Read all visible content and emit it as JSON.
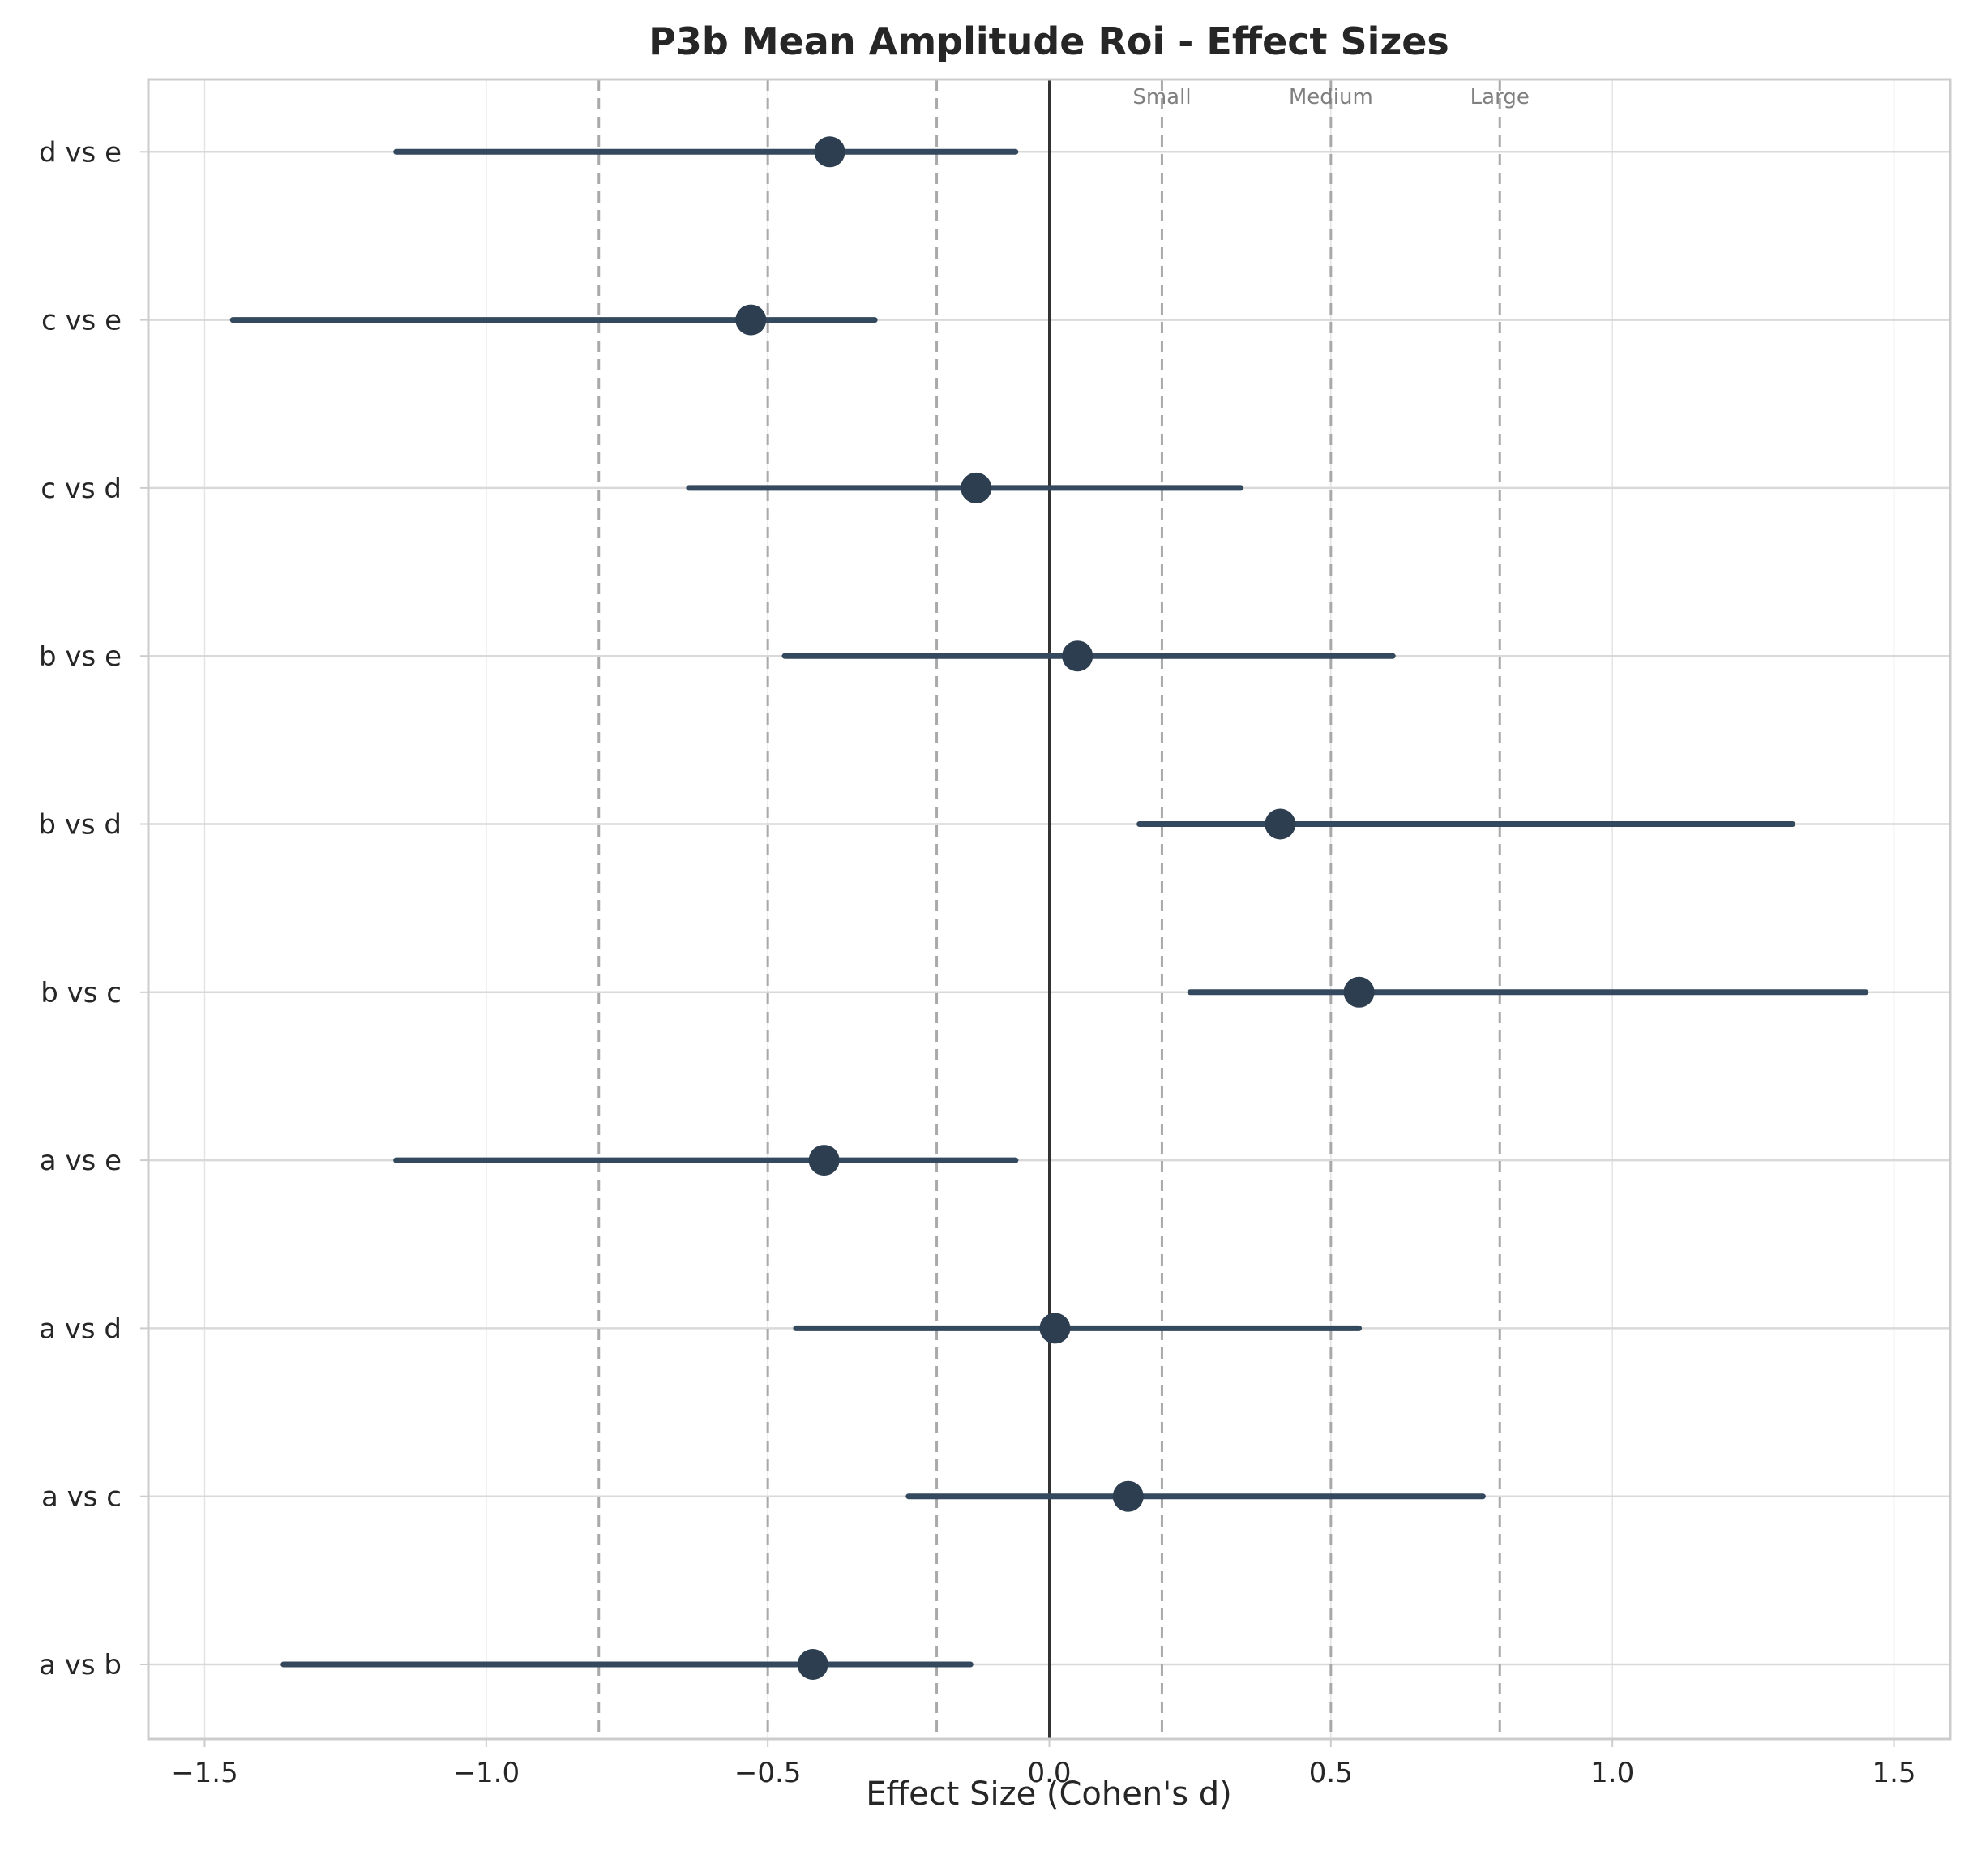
{
  "chart_data": {
    "type": "forest",
    "title": "P3b Mean Amplitude Roi - Effect Sizes",
    "xlabel": "Effect Size (Cohen's d)",
    "ylabel": "",
    "xlim": [
      -1.6,
      1.6
    ],
    "x_ticks": [
      -1.5,
      -1.0,
      -0.5,
      0.0,
      0.5,
      1.0,
      1.5
    ],
    "x_tick_labels": [
      "−1.5",
      "−1.0",
      "−0.5",
      "0.0",
      "0.5",
      "1.0",
      "1.5"
    ],
    "grid": true,
    "comparisons": [
      {
        "label": "a vs b",
        "d": -0.42,
        "ci_low": -1.36,
        "ci_high": -0.14
      },
      {
        "label": "a vs c",
        "d": 0.14,
        "ci_low": -0.25,
        "ci_high": 0.77
      },
      {
        "label": "a vs d",
        "d": 0.01,
        "ci_low": -0.45,
        "ci_high": 0.55
      },
      {
        "label": "a vs e",
        "d": -0.4,
        "ci_low": -1.16,
        "ci_high": -0.06
      },
      {
        "label": "b vs c",
        "d": 0.55,
        "ci_low": 0.25,
        "ci_high": 1.45
      },
      {
        "label": "b vs d",
        "d": 0.41,
        "ci_low": 0.16,
        "ci_high": 1.32
      },
      {
        "label": "b vs e",
        "d": 0.05,
        "ci_low": -0.47,
        "ci_high": 0.61
      },
      {
        "label": "c vs d",
        "d": -0.13,
        "ci_low": -0.64,
        "ci_high": 0.34
      },
      {
        "label": "c vs e",
        "d": -0.53,
        "ci_low": -1.45,
        "ci_high": -0.31
      },
      {
        "label": "d vs e",
        "d": -0.39,
        "ci_low": -1.16,
        "ci_high": -0.06
      }
    ],
    "reference_lines": [
      {
        "value": 0.2,
        "label": "Small"
      },
      {
        "value": 0.5,
        "label": "Medium"
      },
      {
        "value": 0.8,
        "label": "Large"
      },
      {
        "value": -0.2,
        "label": ""
      },
      {
        "value": -0.5,
        "label": ""
      },
      {
        "value": -0.8,
        "label": ""
      }
    ],
    "zero_line": 0.0,
    "colors": {
      "marker": "#2c3e50",
      "ci_line": "#34495e",
      "zero_line": "#333333",
      "reference_line": "#a9a9a9",
      "grid": "#d9d9d9",
      "spine": "#cccccc"
    }
  }
}
